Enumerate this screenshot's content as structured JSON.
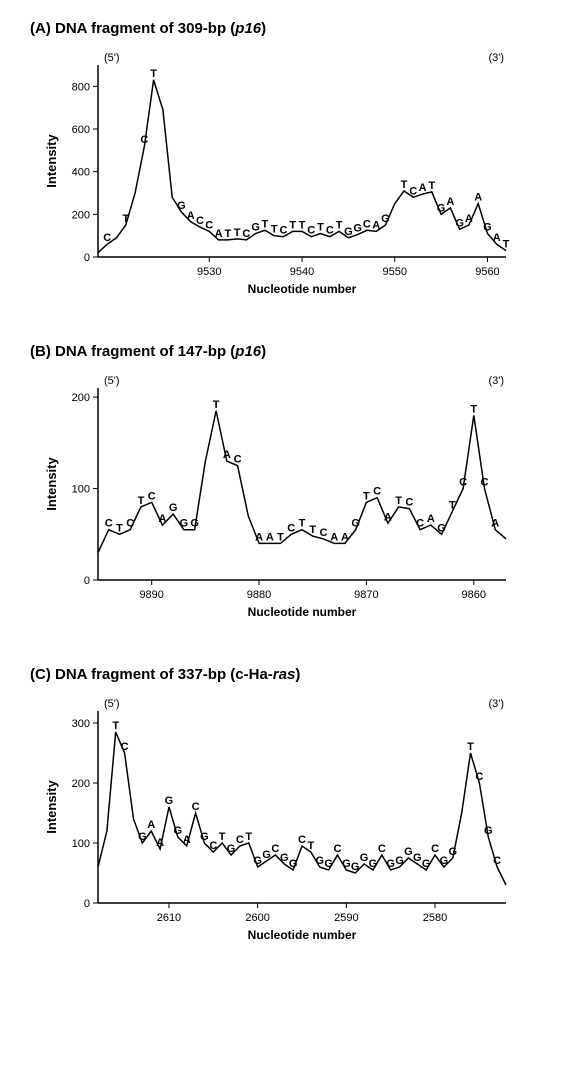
{
  "panels": [
    {
      "key": "A",
      "title_plain": "(A) DNA fragment of 309-bp (",
      "title_italic": "p16",
      "title_tail": ")",
      "xlabel": "Nucleotide number",
      "ylabel": "Intensity",
      "left_end": "(5')",
      "right_end": "(3')",
      "chart": {
        "type": "line",
        "xlim": [
          9518,
          9562
        ],
        "ylim": [
          0,
          900
        ],
        "xtick_step": 10,
        "xtick_start": 9530,
        "ytick_step": 200,
        "ytick_start": 0,
        "line_color": "#000000",
        "background_color": "#ffffff",
        "label_fontsize": 11,
        "data": [
          {
            "x": 9518,
            "y": 20,
            "n": ""
          },
          {
            "x": 9519,
            "y": 60,
            "n": "C"
          },
          {
            "x": 9520,
            "y": 90,
            "n": ""
          },
          {
            "x": 9521,
            "y": 150,
            "n": "T"
          },
          {
            "x": 9522,
            "y": 300,
            "n": ""
          },
          {
            "x": 9523,
            "y": 520,
            "n": "C"
          },
          {
            "x": 9524,
            "y": 830,
            "n": "T"
          },
          {
            "x": 9525,
            "y": 690,
            "n": ""
          },
          {
            "x": 9526,
            "y": 280,
            "n": ""
          },
          {
            "x": 9527,
            "y": 210,
            "n": "G"
          },
          {
            "x": 9528,
            "y": 165,
            "n": "A"
          },
          {
            "x": 9529,
            "y": 140,
            "n": "C"
          },
          {
            "x": 9530,
            "y": 120,
            "n": "C"
          },
          {
            "x": 9531,
            "y": 80,
            "n": "A"
          },
          {
            "x": 9532,
            "y": 80,
            "n": "T"
          },
          {
            "x": 9533,
            "y": 85,
            "n": "T"
          },
          {
            "x": 9534,
            "y": 80,
            "n": "C"
          },
          {
            "x": 9535,
            "y": 110,
            "n": "G"
          },
          {
            "x": 9536,
            "y": 125,
            "n": "T"
          },
          {
            "x": 9537,
            "y": 100,
            "n": "T"
          },
          {
            "x": 9538,
            "y": 95,
            "n": "C"
          },
          {
            "x": 9539,
            "y": 120,
            "n": "T"
          },
          {
            "x": 9540,
            "y": 120,
            "n": "T"
          },
          {
            "x": 9541,
            "y": 95,
            "n": "C"
          },
          {
            "x": 9542,
            "y": 110,
            "n": "T"
          },
          {
            "x": 9543,
            "y": 95,
            "n": "C"
          },
          {
            "x": 9544,
            "y": 120,
            "n": "T"
          },
          {
            "x": 9545,
            "y": 90,
            "n": "G"
          },
          {
            "x": 9546,
            "y": 105,
            "n": "G"
          },
          {
            "x": 9547,
            "y": 125,
            "n": "C"
          },
          {
            "x": 9548,
            "y": 120,
            "n": "A"
          },
          {
            "x": 9549,
            "y": 150,
            "n": "G"
          },
          {
            "x": 9550,
            "y": 250,
            "n": ""
          },
          {
            "x": 9551,
            "y": 310,
            "n": "T"
          },
          {
            "x": 9552,
            "y": 280,
            "n": "C"
          },
          {
            "x": 9553,
            "y": 295,
            "n": "A"
          },
          {
            "x": 9554,
            "y": 305,
            "n": "T"
          },
          {
            "x": 9555,
            "y": 200,
            "n": "G"
          },
          {
            "x": 9556,
            "y": 230,
            "n": "A"
          },
          {
            "x": 9557,
            "y": 130,
            "n": "G"
          },
          {
            "x": 9558,
            "y": 150,
            "n": "A"
          },
          {
            "x": 9559,
            "y": 250,
            "n": "A"
          },
          {
            "x": 9560,
            "y": 110,
            "n": "G"
          },
          {
            "x": 9561,
            "y": 60,
            "n": "A"
          },
          {
            "x": 9562,
            "y": 30,
            "n": "T"
          }
        ]
      }
    },
    {
      "key": "B",
      "title_plain": "(B) DNA fragment of 147-bp (",
      "title_italic": "p16",
      "title_tail": ")",
      "xlabel": "Nucleotide number",
      "ylabel": "Intensity",
      "left_end": "(5')",
      "right_end": "(3')",
      "chart": {
        "type": "line",
        "xlim": [
          9895,
          9857
        ],
        "ylim": [
          0,
          210
        ],
        "xtick_step": 10,
        "xtick_start": 9890,
        "ytick_step": 100,
        "ytick_start": 0,
        "line_color": "#000000",
        "background_color": "#ffffff",
        "label_fontsize": 11,
        "data": [
          {
            "x": 9895,
            "y": 30,
            "n": ""
          },
          {
            "x": 9894,
            "y": 55,
            "n": "C"
          },
          {
            "x": 9893,
            "y": 50,
            "n": "T"
          },
          {
            "x": 9892,
            "y": 55,
            "n": "C"
          },
          {
            "x": 9891,
            "y": 80,
            "n": "T"
          },
          {
            "x": 9890,
            "y": 85,
            "n": "C"
          },
          {
            "x": 9889,
            "y": 60,
            "n": "A"
          },
          {
            "x": 9888,
            "y": 72,
            "n": "G"
          },
          {
            "x": 9887,
            "y": 55,
            "n": "G"
          },
          {
            "x": 9886,
            "y": 55,
            "n": "G"
          },
          {
            "x": 9885,
            "y": 130,
            "n": ""
          },
          {
            "x": 9884,
            "y": 185,
            "n": "T"
          },
          {
            "x": 9883,
            "y": 130,
            "n": "A"
          },
          {
            "x": 9882,
            "y": 125,
            "n": "C"
          },
          {
            "x": 9881,
            "y": 70,
            "n": ""
          },
          {
            "x": 9880,
            "y": 40,
            "n": "A"
          },
          {
            "x": 9879,
            "y": 40,
            "n": "A"
          },
          {
            "x": 9878,
            "y": 40,
            "n": "T"
          },
          {
            "x": 9877,
            "y": 50,
            "n": "C"
          },
          {
            "x": 9876,
            "y": 55,
            "n": "T"
          },
          {
            "x": 9875,
            "y": 48,
            "n": "T"
          },
          {
            "x": 9874,
            "y": 45,
            "n": "C"
          },
          {
            "x": 9873,
            "y": 40,
            "n": "A"
          },
          {
            "x": 9872,
            "y": 40,
            "n": "A"
          },
          {
            "x": 9871,
            "y": 55,
            "n": "G"
          },
          {
            "x": 9870,
            "y": 85,
            "n": "T"
          },
          {
            "x": 9869,
            "y": 90,
            "n": "C"
          },
          {
            "x": 9868,
            "y": 62,
            "n": "A"
          },
          {
            "x": 9867,
            "y": 80,
            "n": "T"
          },
          {
            "x": 9866,
            "y": 78,
            "n": "C"
          },
          {
            "x": 9865,
            "y": 55,
            "n": "C"
          },
          {
            "x": 9864,
            "y": 60,
            "n": "A"
          },
          {
            "x": 9863,
            "y": 50,
            "n": "G"
          },
          {
            "x": 9862,
            "y": 75,
            "n": "T"
          },
          {
            "x": 9861,
            "y": 100,
            "n": "C"
          },
          {
            "x": 9860,
            "y": 180,
            "n": "T"
          },
          {
            "x": 9859,
            "y": 100,
            "n": "C"
          },
          {
            "x": 9858,
            "y": 55,
            "n": "A"
          },
          {
            "x": 9857,
            "y": 45,
            "n": ""
          }
        ]
      }
    },
    {
      "key": "C",
      "title_plain": "(C) DNA fragment of 337-bp (c-Ha-",
      "title_italic": "ras",
      "title_tail": ")",
      "xlabel": "Nucleotide number",
      "ylabel": "Intensity",
      "left_end": "(5')",
      "right_end": "(3')",
      "chart": {
        "type": "line",
        "xlim": [
          2618,
          2572
        ],
        "ylim": [
          0,
          320
        ],
        "xtick_step": 10,
        "xtick_start": 2610,
        "ytick_step": 100,
        "ytick_start": 0,
        "line_color": "#000000",
        "background_color": "#ffffff",
        "label_fontsize": 11,
        "data": [
          {
            "x": 2618,
            "y": 60,
            "n": ""
          },
          {
            "x": 2617,
            "y": 120,
            "n": ""
          },
          {
            "x": 2616,
            "y": 285,
            "n": "T"
          },
          {
            "x": 2615,
            "y": 250,
            "n": "C"
          },
          {
            "x": 2614,
            "y": 140,
            "n": ""
          },
          {
            "x": 2613,
            "y": 100,
            "n": "G"
          },
          {
            "x": 2612,
            "y": 120,
            "n": "A"
          },
          {
            "x": 2611,
            "y": 90,
            "n": "A"
          },
          {
            "x": 2610,
            "y": 160,
            "n": "G"
          },
          {
            "x": 2609,
            "y": 110,
            "n": "G"
          },
          {
            "x": 2608,
            "y": 95,
            "n": "A"
          },
          {
            "x": 2607,
            "y": 150,
            "n": "C"
          },
          {
            "x": 2606,
            "y": 100,
            "n": "G"
          },
          {
            "x": 2605,
            "y": 85,
            "n": "C"
          },
          {
            "x": 2604,
            "y": 100,
            "n": "T"
          },
          {
            "x": 2603,
            "y": 80,
            "n": "G"
          },
          {
            "x": 2602,
            "y": 95,
            "n": "C"
          },
          {
            "x": 2601,
            "y": 100,
            "n": "T"
          },
          {
            "x": 2600,
            "y": 60,
            "n": "G"
          },
          {
            "x": 2599,
            "y": 70,
            "n": "G"
          },
          {
            "x": 2598,
            "y": 80,
            "n": "C"
          },
          {
            "x": 2597,
            "y": 65,
            "n": "G"
          },
          {
            "x": 2596,
            "y": 55,
            "n": "G"
          },
          {
            "x": 2595,
            "y": 95,
            "n": "C"
          },
          {
            "x": 2594,
            "y": 85,
            "n": "T"
          },
          {
            "x": 2593,
            "y": 60,
            "n": "G"
          },
          {
            "x": 2592,
            "y": 55,
            "n": "G"
          },
          {
            "x": 2591,
            "y": 80,
            "n": "C"
          },
          {
            "x": 2590,
            "y": 55,
            "n": "G"
          },
          {
            "x": 2589,
            "y": 50,
            "n": "G"
          },
          {
            "x": 2588,
            "y": 65,
            "n": "G"
          },
          {
            "x": 2587,
            "y": 55,
            "n": "G"
          },
          {
            "x": 2586,
            "y": 80,
            "n": "C"
          },
          {
            "x": 2585,
            "y": 55,
            "n": "G"
          },
          {
            "x": 2584,
            "y": 60,
            "n": "G"
          },
          {
            "x": 2583,
            "y": 75,
            "n": "G"
          },
          {
            "x": 2582,
            "y": 65,
            "n": "G"
          },
          {
            "x": 2581,
            "y": 55,
            "n": "G"
          },
          {
            "x": 2580,
            "y": 80,
            "n": "C"
          },
          {
            "x": 2579,
            "y": 60,
            "n": "G"
          },
          {
            "x": 2578,
            "y": 75,
            "n": "G"
          },
          {
            "x": 2577,
            "y": 150,
            "n": ""
          },
          {
            "x": 2576,
            "y": 250,
            "n": "T"
          },
          {
            "x": 2575,
            "y": 200,
            "n": "C"
          },
          {
            "x": 2574,
            "y": 110,
            "n": "G"
          },
          {
            "x": 2573,
            "y": 60,
            "n": "C"
          },
          {
            "x": 2572,
            "y": 30,
            "n": ""
          }
        ]
      }
    }
  ]
}
